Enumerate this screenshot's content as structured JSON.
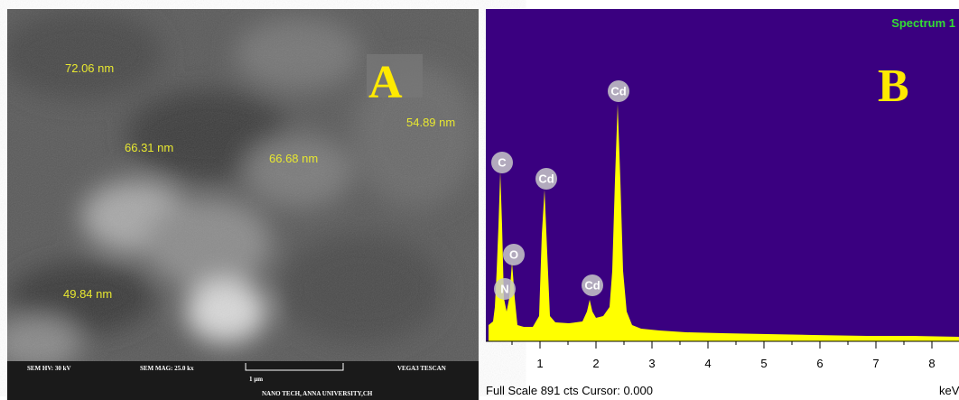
{
  "panel_a": {
    "letter": "A",
    "measurements": [
      "72.06 nm",
      "54.89 nm",
      "66.31 nm",
      "66.68 nm",
      "49.84 nm"
    ],
    "info_bar": {
      "hv": "SEM HV: 30 kV",
      "mag": "SEM MAG: 25.0 kx",
      "scale": "1 µm",
      "instrument": "VEGA3 TESCAN",
      "lab": "NANO TECH, ANNA UNIVERSITY,CH"
    }
  },
  "panel_b": {
    "letter": "B",
    "spectrum_name": "Spectrum 1",
    "peaks": [
      "C",
      "N",
      "O",
      "Cd",
      "Cd",
      "Cd"
    ],
    "x_ticks": [
      "1",
      "2",
      "3",
      "4",
      "5",
      "6",
      "7",
      "8"
    ],
    "x_unit": "keV",
    "status": "Full Scale 891 cts Cursor: 0.000"
  }
}
